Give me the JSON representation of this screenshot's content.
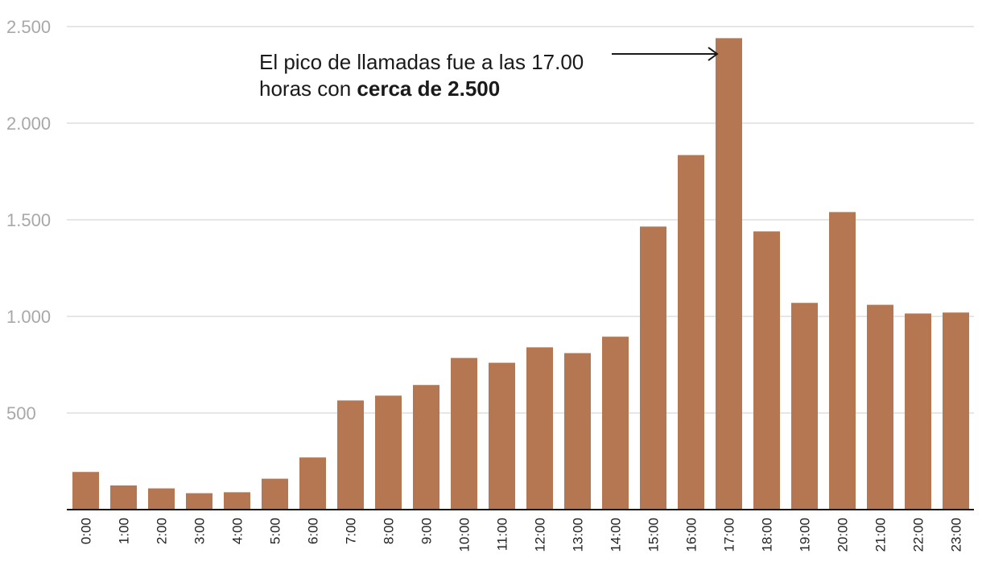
{
  "chart_data": {
    "type": "bar",
    "title": "",
    "xlabel": "",
    "ylabel": "",
    "categories": [
      "0:00",
      "1:00",
      "2:00",
      "3:00",
      "4:00",
      "5:00",
      "6:00",
      "7:00",
      "8:00",
      "9:00",
      "10:00",
      "11:00",
      "12:00",
      "13:00",
      "14:00",
      "15:00",
      "16:00",
      "17:00",
      "18:00",
      "19:00",
      "20:00",
      "21:00",
      "22:00",
      "23:00"
    ],
    "values": [
      195,
      125,
      110,
      85,
      90,
      160,
      270,
      565,
      590,
      645,
      785,
      760,
      840,
      810,
      895,
      1465,
      1835,
      2440,
      1440,
      1070,
      1540,
      1060,
      1015,
      1020
    ],
    "ylim": [
      0,
      2500
    ],
    "yticks": [
      500,
      1000,
      1500,
      2000,
      2500
    ],
    "ytick_labels": [
      "500",
      "1.000",
      "1.500",
      "2.000",
      "2.500"
    ],
    "grid": true,
    "bar_color": "#b57752",
    "annotation": {
      "line1": "El pico de llamadas fue a las 17.00",
      "line2_prefix": "horas con ",
      "line2_bold": "cerca de 2.500",
      "target_category": "17:00"
    }
  }
}
